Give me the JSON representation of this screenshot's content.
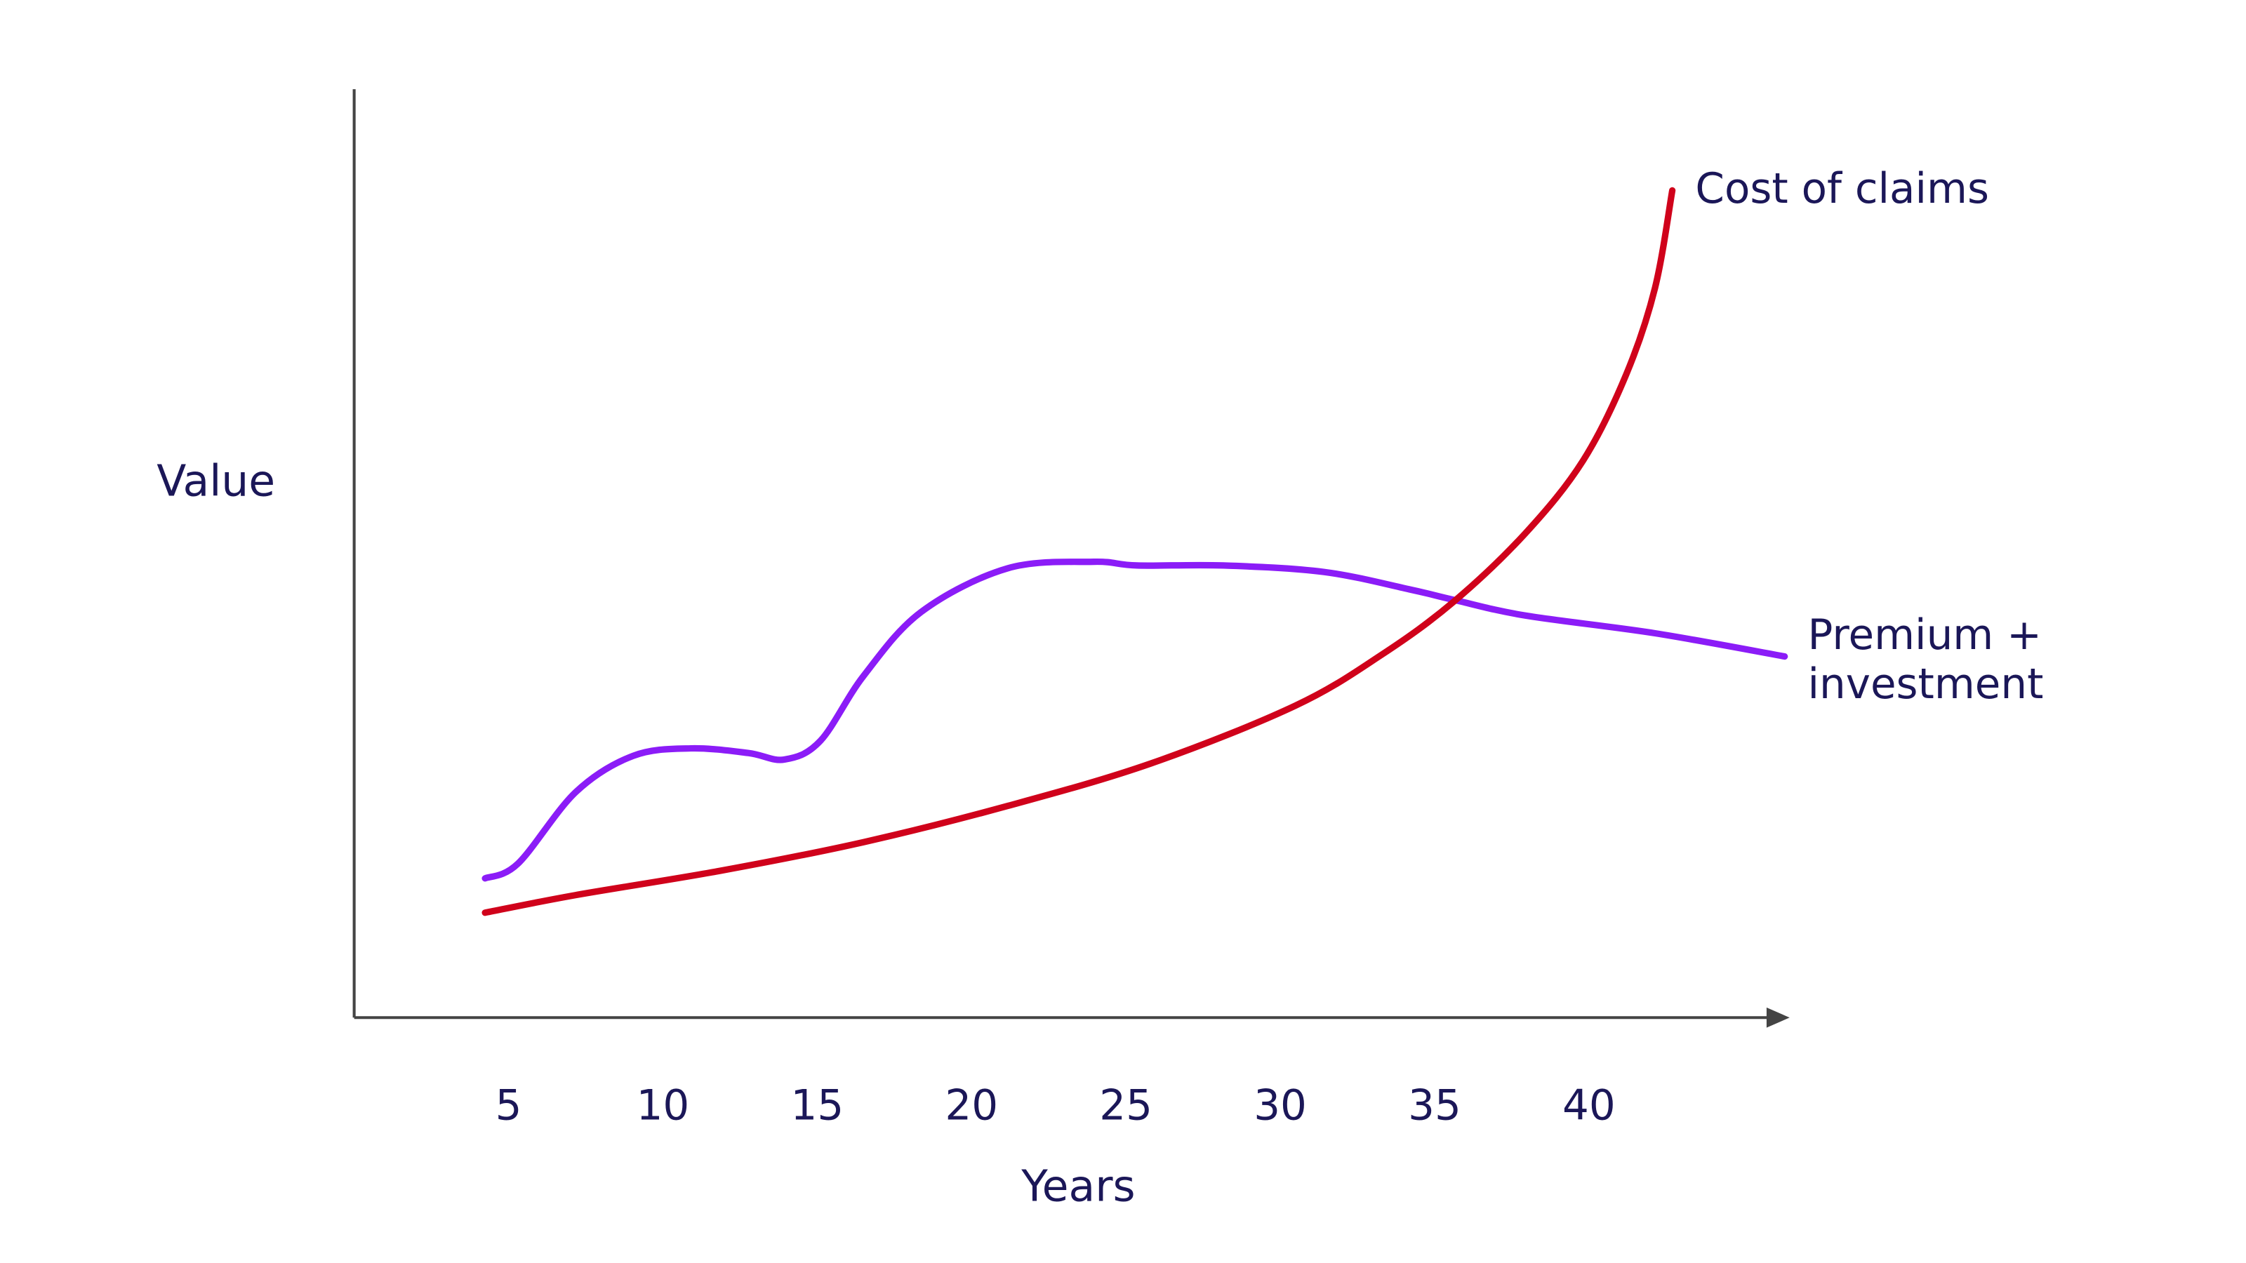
{
  "chart_data": {
    "type": "line",
    "x_label": "Years",
    "y_label": "Value",
    "xlim": [
      0,
      46.5
    ],
    "ylim": [
      0,
      100
    ],
    "xticks": [
      5,
      10,
      15,
      20,
      25,
      30,
      35,
      40
    ],
    "series": [
      {
        "name": "Premium + investment",
        "color": "#8b1cf7",
        "x": [
          4.24,
          5.31,
          7.18,
          9.04,
          10.91,
          12.77,
          13.94,
          15.1,
          16.5,
          18.37,
          21.17,
          23.96,
          25.36,
          28.16,
          31.42,
          34.22,
          35.62,
          37.95,
          42.14,
          46.34
        ],
        "values": [
          15.0,
          16.6,
          24.3,
          28.2,
          29.0,
          28.5,
          27.8,
          29.8,
          36.8,
          43.7,
          48.4,
          49.1,
          48.7,
          48.7,
          48.0,
          46.1,
          45.0,
          43.3,
          41.4,
          38.9
        ]
      },
      {
        "name": "Cost of claims",
        "color": "#d0021b",
        "x": [
          4.24,
          7.18,
          11.84,
          16.5,
          21.17,
          25.83,
          30.49,
          33.29,
          35.62,
          37.95,
          39.81,
          41.21,
          42.14,
          42.7
        ],
        "values": [
          11.3,
          13.2,
          15.8,
          18.9,
          22.8,
          27.4,
          33.6,
          39.1,
          44.8,
          52.2,
          60.0,
          69.3,
          78.6,
          89.1
        ]
      }
    ]
  }
}
